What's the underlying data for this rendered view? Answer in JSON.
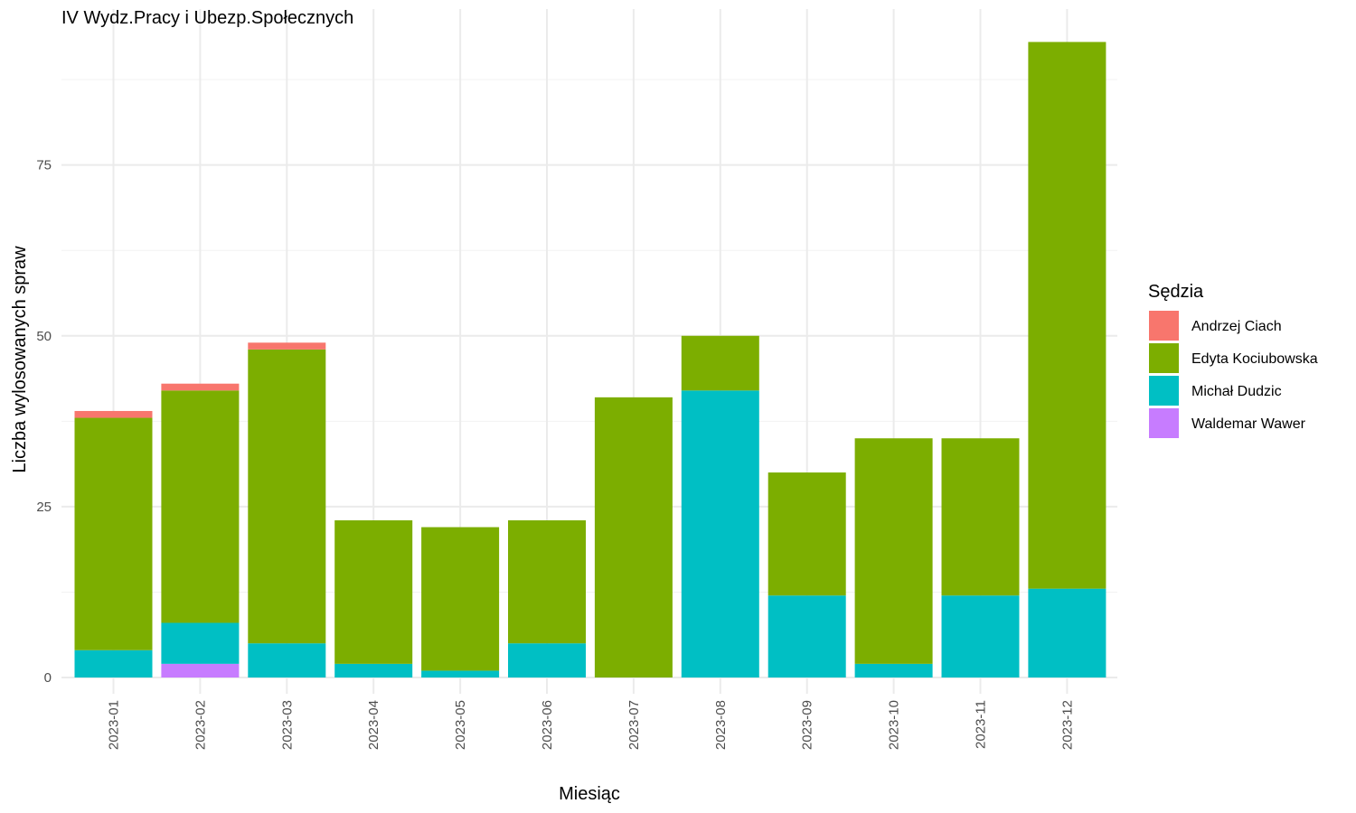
{
  "chart_data": {
    "type": "bar",
    "stacked": true,
    "title": "IV Wydz.Pracy i Ubezp.Społecznych",
    "xlabel": "Miesiąc",
    "ylabel": "Liczba wylosowanych spraw",
    "ylim": [
      0,
      97
    ],
    "yticks": [
      0,
      25,
      50,
      75
    ],
    "grid": true,
    "legend_position": "right",
    "legend_title": "Sędzia",
    "categories": [
      "2023-01",
      "2023-02",
      "2023-03",
      "2023-04",
      "2023-05",
      "2023-06",
      "2023-07",
      "2023-08",
      "2023-09",
      "2023-10",
      "2023-11",
      "2023-12"
    ],
    "series": [
      {
        "name": "Andrzej Ciach",
        "color": "#F8766D",
        "values": [
          1,
          1,
          1,
          0,
          0,
          0,
          0,
          0,
          0,
          0,
          0,
          0
        ]
      },
      {
        "name": "Edyta Kociubowska",
        "color": "#7CAE00",
        "values": [
          34,
          34,
          43,
          21,
          21,
          18,
          41,
          8,
          18,
          33,
          23,
          80
        ]
      },
      {
        "name": "Michał Dudzic",
        "color": "#00BFC4",
        "values": [
          4,
          6,
          5,
          2,
          1,
          5,
          0,
          42,
          12,
          2,
          12,
          13
        ]
      },
      {
        "name": "Waldemar Wawer",
        "color": "#C77CFF",
        "values": [
          0,
          2,
          0,
          0,
          0,
          0,
          0,
          0,
          0,
          0,
          0,
          0
        ]
      }
    ]
  }
}
